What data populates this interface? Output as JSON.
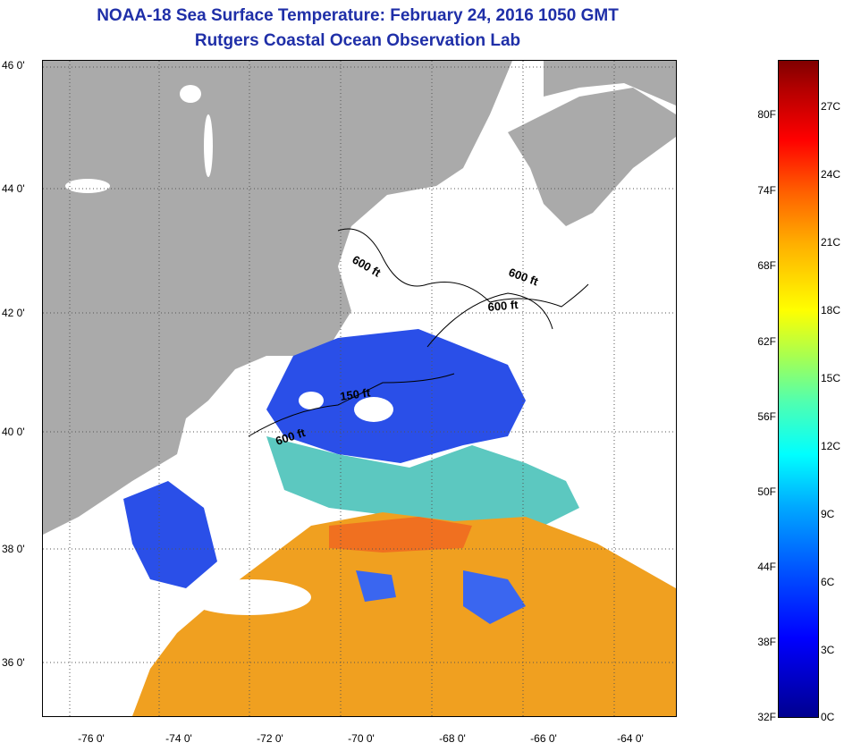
{
  "title": {
    "line1": "NOAA-18 Sea Surface Temperature:  February 24, 2016 1050 GMT",
    "line2": "Rutgers Coastal Ocean Observation Lab"
  },
  "map": {
    "latitude_labels": [
      "46 0'",
      "44 0'",
      "42 0'",
      "40 0'",
      "38 0'",
      "36 0'"
    ],
    "longitude_labels": [
      "-76 0'",
      "-74 0'",
      "-72 0'",
      "-70 0'",
      "-68 0'",
      "-66 0'",
      "-64 0'"
    ],
    "contour_labels": [
      "600 ft",
      "600 ft",
      "600 ft",
      "150 ft",
      "600 ft"
    ],
    "colors": {
      "land": "#aaaaaa",
      "cloud": "#ffffff",
      "grid": "#555555"
    }
  },
  "colorbar": {
    "fahrenheit_labels": [
      "80F",
      "74F",
      "68F",
      "62F",
      "56F",
      "50F",
      "44F",
      "38F",
      "32F"
    ],
    "celsius_labels": [
      "27C",
      "24C",
      "21C",
      "18C",
      "15C",
      "12C",
      "9C",
      "6C",
      "3C",
      "0C"
    ]
  }
}
